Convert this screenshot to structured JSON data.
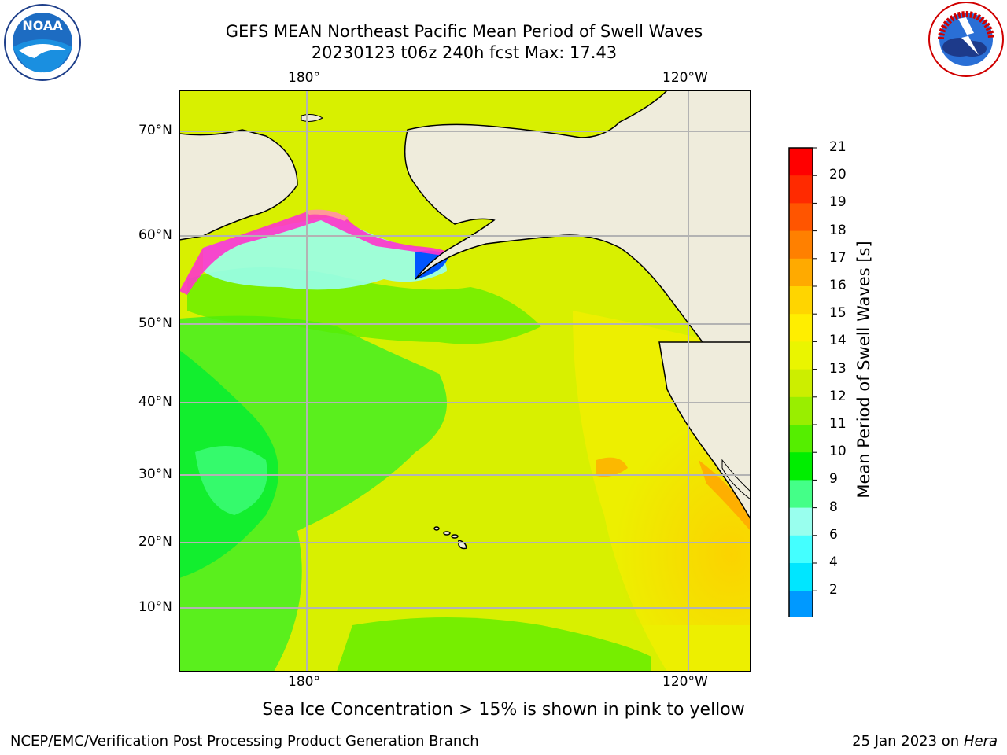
{
  "header": {
    "title_line1": "GEFS MEAN Northeast Pacific Mean Period of Swell Waves",
    "title_line2": "20230123 t06z 240h fcst   Max: 17.43"
  },
  "logos": {
    "left": {
      "name": "noaa-logo",
      "text": "NOAA"
    },
    "right": {
      "name": "nws-logo",
      "text": "NATIONAL WEATHER SERVICE"
    }
  },
  "map": {
    "lon_labels_top": [
      "180°",
      "120°W"
    ],
    "lon_labels_bottom": [
      "180°",
      "120°W"
    ],
    "lat_labels": [
      "70°N",
      "60°N",
      "50°N",
      "40°N",
      "30°N",
      "20°N",
      "10°N"
    ],
    "land_color": "#efecdc",
    "ice_colors": [
      "#ff33cc",
      "#ff66ff",
      "#ffb3ff",
      "#ffcc66",
      "#ffff66"
    ]
  },
  "colorbar": {
    "label": "Mean Period of Swell Waves [s]",
    "ticks": [
      "21",
      "20",
      "19",
      "18",
      "17",
      "16",
      "15",
      "14",
      "13",
      "12",
      "11",
      "10",
      "9",
      "8",
      "6",
      "4",
      "2"
    ],
    "colors": [
      "#ff0000",
      "#ff2a00",
      "#ff5500",
      "#ff8000",
      "#ffaa00",
      "#ffd500",
      "#ffee00",
      "#eaf500",
      "#ccee00",
      "#99ee00",
      "#55ee00",
      "#00ee00",
      "#44ff88",
      "#99ffee",
      "#44ffff",
      "#00e6ff",
      "#0099ff",
      "#0055ff"
    ],
    "extend_color": "#0000ff"
  },
  "caption": "Sea Ice Concentration > 15% is shown in pink to yellow",
  "footer": {
    "left": "NCEP/EMC/Verification Post Processing Product Generation Branch",
    "right_date": "25 Jan 2023 on ",
    "right_machine": "Hera"
  }
}
